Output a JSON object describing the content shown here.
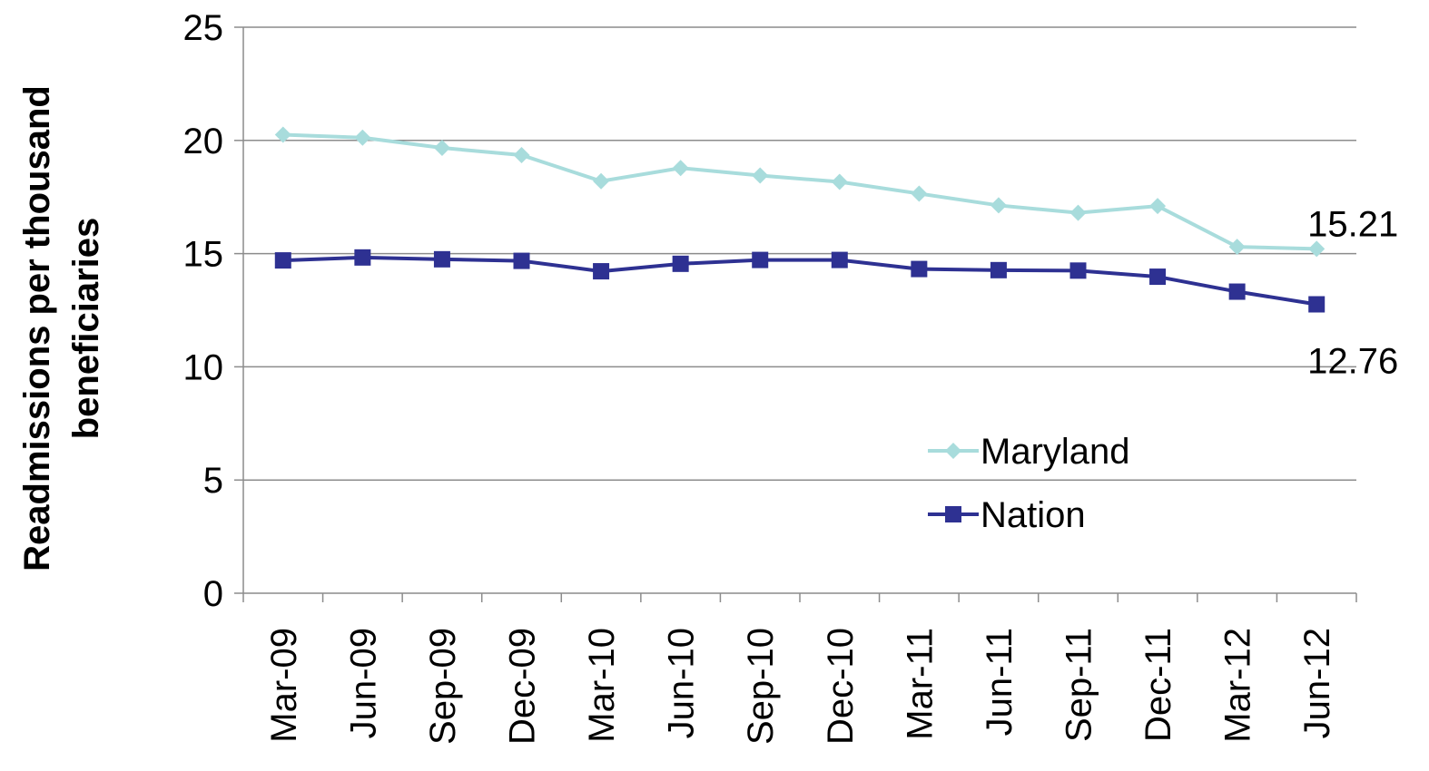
{
  "chart_data": {
    "type": "line",
    "title": "",
    "xlabel": "",
    "ylabel": "Readmissions per thousand beneficiaries",
    "ylabel_lines": [
      "Readmissions per thousand",
      "beneficiaries"
    ],
    "categories": [
      "Mar-09",
      "Jun-09",
      "Sep-09",
      "Dec-09",
      "Mar-10",
      "Jun-10",
      "Sep-10",
      "Dec-10",
      "Mar-11",
      "Jun-11",
      "Sep-11",
      "Dec-11",
      "Mar-12",
      "Jun-12"
    ],
    "ylim": [
      0,
      25
    ],
    "yticks": [
      "0",
      "5",
      "10",
      "15",
      "20",
      "25"
    ],
    "grid": true,
    "legend": "center-right",
    "series": [
      {
        "name": "Maryland",
        "color": "#a8dcdc",
        "marker": "diamond",
        "values": [
          20.25,
          20.12,
          19.67,
          19.35,
          18.2,
          18.78,
          18.45,
          18.17,
          17.65,
          17.13,
          16.8,
          17.1,
          15.3,
          15.21
        ],
        "end_label": "15.21"
      },
      {
        "name": "Nation",
        "color": "#2e3192",
        "marker": "square",
        "values": [
          14.7,
          14.83,
          14.75,
          14.68,
          14.22,
          14.55,
          14.72,
          14.72,
          14.32,
          14.27,
          14.25,
          13.98,
          13.32,
          12.76
        ],
        "end_label": "12.76"
      }
    ]
  }
}
